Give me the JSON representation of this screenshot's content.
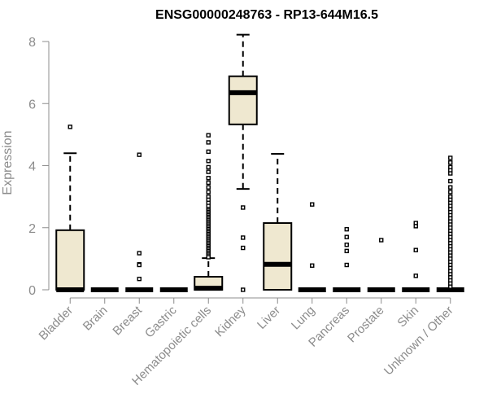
{
  "chart_data": {
    "type": "boxplot",
    "title": "ENSG00000248763 - RP13-644M16.5",
    "xlabel": "",
    "ylabel": "Expression",
    "ylim": [
      0,
      8.4
    ],
    "yticks": [
      0,
      2,
      4,
      6,
      8
    ],
    "colors": {
      "box_fill": "#efe8d0",
      "stroke": "#000000",
      "axis": "#8c8c8c",
      "text": "#8c8c8c"
    },
    "categories": [
      "Bladder",
      "Brain",
      "Breast",
      "Gastric",
      "Hematopoietic cells",
      "Kidney",
      "Liver",
      "Lung",
      "Pancreas",
      "Prostate",
      "Skin",
      "Unknown / Other"
    ],
    "boxes": [
      {
        "name": "Bladder",
        "whisker_low": 0,
        "q1": 0,
        "median": 0,
        "q3": 1.92,
        "whisker_high": 4.4,
        "outliers": [
          5.25
        ]
      },
      {
        "name": "Brain",
        "whisker_low": 0,
        "q1": 0,
        "median": 0,
        "q3": 0,
        "whisker_high": 0,
        "outliers": []
      },
      {
        "name": "Breast",
        "whisker_low": 0,
        "q1": 0,
        "median": 0,
        "q3": 0,
        "whisker_high": 0,
        "outliers": [
          4.35,
          1.18,
          0.82,
          0.8,
          0.35
        ]
      },
      {
        "name": "Gastric",
        "whisker_low": 0,
        "q1": 0,
        "median": 0,
        "q3": 0,
        "whisker_high": 0,
        "outliers": []
      },
      {
        "name": "Hematopoietic cells",
        "whisker_low": 0,
        "q1": 0,
        "median": 0.05,
        "q3": 0.42,
        "whisker_high": 1.02,
        "outliers": [
          4.98,
          4.75,
          4.45,
          4.15,
          3.95,
          3.8,
          3.6,
          3.45,
          3.3,
          3.15,
          3.0,
          2.9,
          2.8,
          2.7,
          2.6,
          2.55,
          2.5,
          2.45,
          2.4,
          2.35,
          2.3,
          2.25,
          2.2,
          2.15,
          2.1,
          2.05,
          2.0,
          1.95,
          1.9,
          1.85,
          1.8,
          1.75,
          1.7,
          1.65,
          1.6,
          1.55,
          1.5,
          1.45,
          1.4,
          1.35,
          1.3,
          1.25,
          1.2,
          1.15,
          1.1,
          1.05
        ]
      },
      {
        "name": "Kidney",
        "whisker_low": 3.25,
        "q1": 5.33,
        "median": 6.35,
        "q3": 6.88,
        "whisker_high": 8.22,
        "outliers": [
          2.65,
          1.68,
          1.35,
          0.0
        ]
      },
      {
        "name": "Liver",
        "whisker_low": 0,
        "q1": 0,
        "median": 0.82,
        "q3": 2.15,
        "whisker_high": 4.38,
        "outliers": []
      },
      {
        "name": "Lung",
        "whisker_low": 0,
        "q1": 0,
        "median": 0,
        "q3": 0,
        "whisker_high": 0,
        "outliers": [
          2.75,
          0.78
        ]
      },
      {
        "name": "Pancreas",
        "whisker_low": 0,
        "q1": 0,
        "median": 0,
        "q3": 0,
        "whisker_high": 0,
        "outliers": [
          1.95,
          1.7,
          1.45,
          1.25,
          0.8
        ]
      },
      {
        "name": "Prostate",
        "whisker_low": 0,
        "q1": 0,
        "median": 0,
        "q3": 0,
        "whisker_high": 0,
        "outliers": [
          1.6
        ]
      },
      {
        "name": "Skin",
        "whisker_low": 0,
        "q1": 0,
        "median": 0,
        "q3": 0,
        "whisker_high": 0,
        "outliers": [
          2.15,
          2.05,
          1.28,
          0.45
        ]
      },
      {
        "name": "Unknown / Other",
        "whisker_low": 0,
        "q1": 0,
        "median": 0,
        "q3": 0,
        "whisker_high": 0,
        "outliers": [
          4.25,
          4.1,
          3.95,
          3.85,
          3.75,
          3.5,
          3.3,
          3.15,
          3.0,
          2.9,
          2.8,
          2.7,
          2.6,
          2.5,
          2.4,
          2.3,
          2.2,
          2.1,
          2.0,
          1.9,
          1.8,
          1.7,
          1.6,
          1.5,
          1.4,
          1.3,
          1.2,
          1.1,
          1.0,
          0.9,
          0.8,
          0.7,
          0.6,
          0.5,
          0.4,
          0.3,
          0.2,
          0.1
        ]
      }
    ]
  }
}
